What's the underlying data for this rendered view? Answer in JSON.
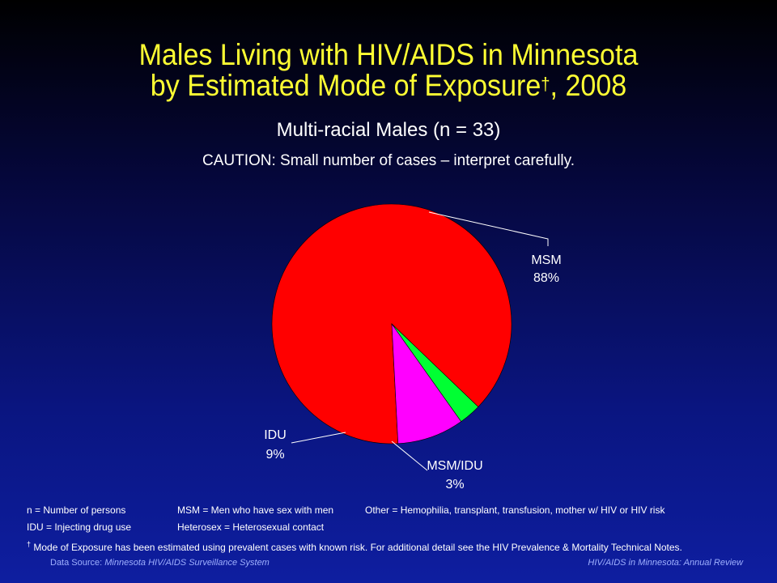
{
  "title": {
    "line1": "Males Living with HIV/AIDS in Minnesota",
    "line2_main": "by Estimated Mode of Exposure",
    "line2_mark": "†",
    "line2_year": ", 2008"
  },
  "subtitle": "Multi-racial Males (n = 33)",
  "caution": "CAUTION: Small number of cases – interpret carefully.",
  "chart_data": {
    "type": "pie",
    "slices": [
      {
        "label": "MSM",
        "value": 88,
        "display": "88%",
        "color": "#ff0000"
      },
      {
        "label": "MSM/IDU",
        "value": 3,
        "display": "3%",
        "color": "#00ff33"
      },
      {
        "label": "IDU",
        "value": 9,
        "display": "9%",
        "color": "#ff00ff"
      }
    ]
  },
  "notes": {
    "row1": {
      "c1": "n = Number of persons",
      "c2": "MSM = Men who have sex with men",
      "c3": "Other = Hemophilia, transplant, transfusion, mother w/ HIV or HIV risk"
    },
    "row2": {
      "c1": "IDU = Injecting drug use",
      "c2": "Heterosex = Heterosexual contact"
    },
    "row3": {
      "mark": "†",
      "text": " Mode of Exposure has been estimated using prevalent cases with known risk. For additional detail see the HIV Prevalence & Mortality Technical Notes."
    }
  },
  "footer": {
    "source_label": "Data Source:",
    "source_name": "Minnesota HIV/AIDS Surveillance System",
    "right": "HIV/AIDS in Minnesota: Annual Review"
  }
}
